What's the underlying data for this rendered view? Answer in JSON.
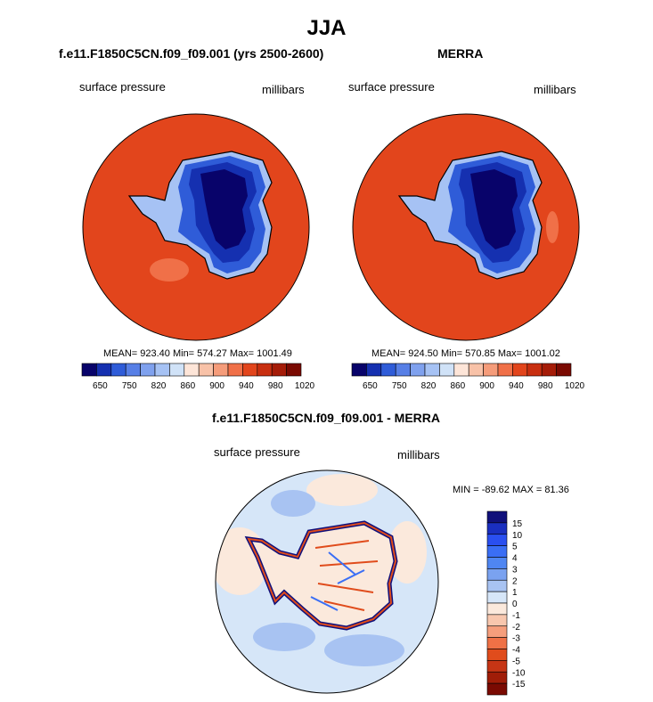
{
  "page": {
    "season_title": "JJA"
  },
  "panels": {
    "model": {
      "title": "f.e11.F1850C5CN.f09_f09.001 (yrs 2500-2600)",
      "left_label": "surface pressure",
      "right_label": "millibars",
      "stats": "MEAN= 923.40  Min= 574.27  Max= 1001.49"
    },
    "obs": {
      "title": "MERRA",
      "left_label": "surface pressure",
      "right_label": "millibars",
      "stats": "MEAN= 924.50  Min= 570.85  Max= 1001.02"
    },
    "diff": {
      "title": "f.e11.F1850C5CN.f09_f09.001 - MERRA",
      "left_label": "surface pressure",
      "right_label": "millibars",
      "stats": "MIN = -89.62 MAX =  81.36"
    }
  },
  "colorbar_pressure": {
    "colors": [
      "#08036a",
      "#1530b0",
      "#2f5cd8",
      "#577fe6",
      "#7fa1ee",
      "#a6c2f4",
      "#d0e2f7",
      "#fde5d8",
      "#f8c2a8",
      "#f59c7a",
      "#f07048",
      "#e2451c",
      "#c82f10",
      "#a51c08",
      "#7a0a02"
    ],
    "tick_labels": [
      "650",
      "750",
      "820",
      "860",
      "900",
      "940",
      "980",
      "1020"
    ]
  },
  "colorbar_diff": {
    "colors": [
      "#10107a",
      "#1a2fc0",
      "#2a4ff0",
      "#3a6ef5",
      "#4f86f2",
      "#7aa2f0",
      "#a8c3f2",
      "#d6e6f8",
      "#fbe9dc",
      "#f8c7ae",
      "#f59e7c",
      "#ef7146",
      "#e04c1c",
      "#c63515",
      "#a01d08",
      "#7a0a02"
    ],
    "tick_labels": [
      "15",
      "10",
      "5",
      "4",
      "3",
      "2",
      "1",
      "0",
      "-1",
      "-2",
      "-3",
      "-4",
      "-5",
      "-10",
      "-15"
    ]
  }
}
